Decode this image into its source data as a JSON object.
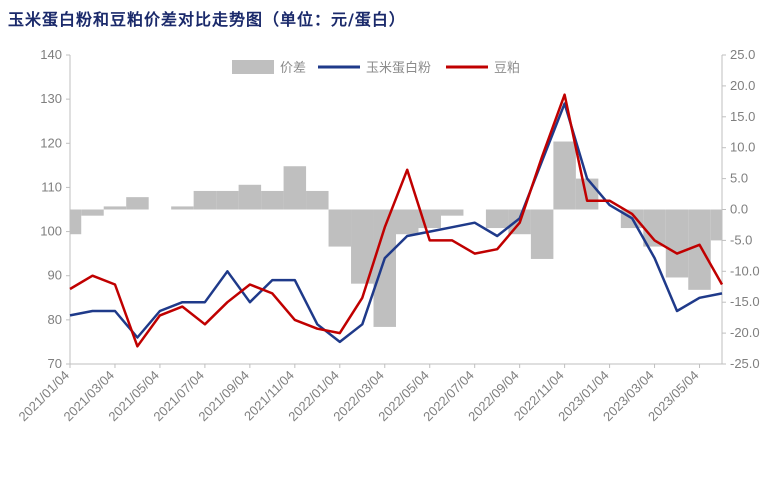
{
  "title": "玉米蛋白粉和豆粕价差对比走势图（单位：元/蛋白）",
  "chart_data": {
    "type": "line",
    "title": "玉米蛋白粉和豆粕价差对比走势图（单位：元/蛋白）",
    "legend_position": "top",
    "grid": false,
    "y_left": {
      "min": 70,
      "max": 140,
      "ticks": [
        70,
        80,
        90,
        100,
        110,
        120,
        130,
        140
      ]
    },
    "y_right": {
      "min": -25,
      "max": 25,
      "ticks": [
        "-25.0",
        "-20.0",
        "-15.0",
        "-10.0",
        "-5.0",
        "0.0",
        "5.0",
        "10.0",
        "15.0",
        "20.0",
        "25.0"
      ]
    },
    "x_ticks": [
      "2021/01/04",
      "2021/03/04",
      "2021/05/04",
      "2021/07/04",
      "2021/09/04",
      "2021/11/04",
      "2022/01/04",
      "2022/03/04",
      "2022/05/04",
      "2022/07/04",
      "2022/09/04",
      "2022/11/04",
      "2023/01/04",
      "2023/03/04",
      "2023/05/04"
    ],
    "months": [
      "2021/01",
      "2021/02",
      "2021/03",
      "2021/04",
      "2021/05",
      "2021/06",
      "2021/07",
      "2021/08",
      "2021/09",
      "2021/10",
      "2021/11",
      "2021/12",
      "2022/01",
      "2022/02",
      "2022/03",
      "2022/04",
      "2022/05",
      "2022/06",
      "2022/07",
      "2022/08",
      "2022/09",
      "2022/10",
      "2022/11",
      "2022/12",
      "2023/01",
      "2023/02",
      "2023/03",
      "2023/04",
      "2023/05",
      "2023/06"
    ],
    "series": [
      {
        "name": "价差",
        "type": "area",
        "axis": "right",
        "color": "#bfbfbf",
        "values": [
          -4,
          -1,
          0.5,
          2,
          0,
          0.5,
          3,
          3,
          4,
          3,
          7,
          3,
          -6,
          -12,
          -19,
          -4,
          -3,
          -1,
          0,
          -3,
          -4,
          -8,
          11,
          5,
          0,
          -3,
          -6,
          -11,
          -13,
          -5
        ]
      },
      {
        "name": "玉米蛋白粉",
        "type": "line",
        "axis": "left",
        "color": "#1f3a8a",
        "values": [
          81,
          82,
          82,
          76,
          82,
          84,
          84,
          91,
          84,
          89,
          89,
          79,
          75,
          79,
          94,
          99,
          100,
          101,
          102,
          99,
          103,
          116,
          129,
          112,
          106,
          103,
          94,
          82,
          85,
          86
        ]
      },
      {
        "name": "豆粕",
        "type": "line",
        "axis": "left",
        "color": "#c00000",
        "values": [
          87,
          90,
          88,
          74,
          81,
          83,
          79,
          84,
          88,
          86,
          80,
          78,
          77,
          85,
          101,
          114,
          98,
          98,
          95,
          96,
          102,
          117,
          131,
          107,
          107,
          104,
          98,
          95,
          97,
          88
        ]
      }
    ]
  }
}
